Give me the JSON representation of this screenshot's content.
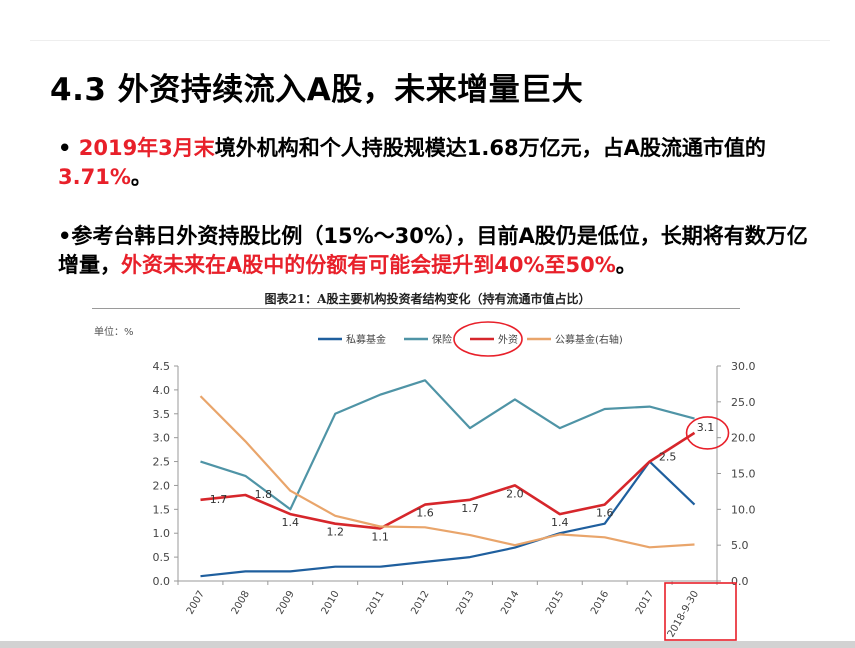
{
  "slide": {
    "title": "4.3  外资持续流入A股，未来增量巨大",
    "bullet1": {
      "prefix": "• ",
      "highlight1": "2019年3月末",
      "text1": "境外机构和个人持股规模达1.68万亿元，占A股流通市值的",
      "highlight2": "3.71%",
      "text2": "。"
    },
    "bullet2": {
      "text1": "•参考台韩日外资持股比例（15%～30%），目前A股仍是低位，长期将有数万亿增量，",
      "highlight": "外资未来在A股中的份额有可能会提升到40%至50%",
      "text2": "。"
    }
  },
  "colors": {
    "accent_red": "#e8202a",
    "private_fund": "#1f5f9e",
    "insurance": "#4f94a6",
    "foreign": "#d6262b",
    "public_fund": "#e9a56b"
  },
  "chart_data": {
    "type": "line",
    "title": "图表21：A股主要机构投资者结构变化（持有流通市值占比）",
    "unit_label": "单位：%",
    "categories": [
      "2007",
      "2008",
      "2009",
      "2010",
      "2011",
      "2012",
      "2013",
      "2014",
      "2015",
      "2016",
      "2017",
      "2018-9-30"
    ],
    "ylim": [
      0,
      4.5
    ],
    "y_ticks": [
      "0.0",
      "0.5",
      "1.0",
      "1.5",
      "2.0",
      "2.5",
      "3.0",
      "3.5",
      "4.0",
      "4.5"
    ],
    "y2lim": [
      0,
      30
    ],
    "y2_ticks": [
      "0.0",
      "5.0",
      "10.0",
      "15.0",
      "20.0",
      "25.0",
      "30.0"
    ],
    "legend_position": "top",
    "grid": false,
    "series": [
      {
        "name": "私募基金",
        "axis": "left",
        "values": [
          0.1,
          0.2,
          0.2,
          0.3,
          0.3,
          0.4,
          0.5,
          0.7,
          1.0,
          1.2,
          2.5,
          1.6
        ]
      },
      {
        "name": "保险",
        "axis": "left",
        "values": [
          2.5,
          2.2,
          1.5,
          3.5,
          3.9,
          4.2,
          3.2,
          3.8,
          3.2,
          3.6,
          3.65,
          3.4
        ]
      },
      {
        "name": "外资",
        "axis": "left",
        "values": [
          1.7,
          1.8,
          1.4,
          1.2,
          1.1,
          1.6,
          1.7,
          2.0,
          1.4,
          1.6,
          2.5,
          3.1
        ]
      },
      {
        "name": "公募基金(右轴)",
        "axis": "right",
        "values": [
          25.8,
          19.5,
          12.6,
          9.1,
          7.6,
          7.5,
          6.4,
          5.0,
          6.5,
          6.1,
          4.7,
          5.1
        ]
      }
    ],
    "data_labels": {
      "series": "外资",
      "labels": [
        "1.7",
        "1.8",
        "1.4",
        "1.2",
        "1.1",
        "1.6",
        "1.7",
        "2.0",
        "1.4",
        "1.6",
        "2.5",
        "3.1"
      ]
    },
    "annotations": [
      "highlight-circle-legend-外资",
      "highlight-circle-last-point",
      "highlight-box-2018-9-30"
    ]
  }
}
